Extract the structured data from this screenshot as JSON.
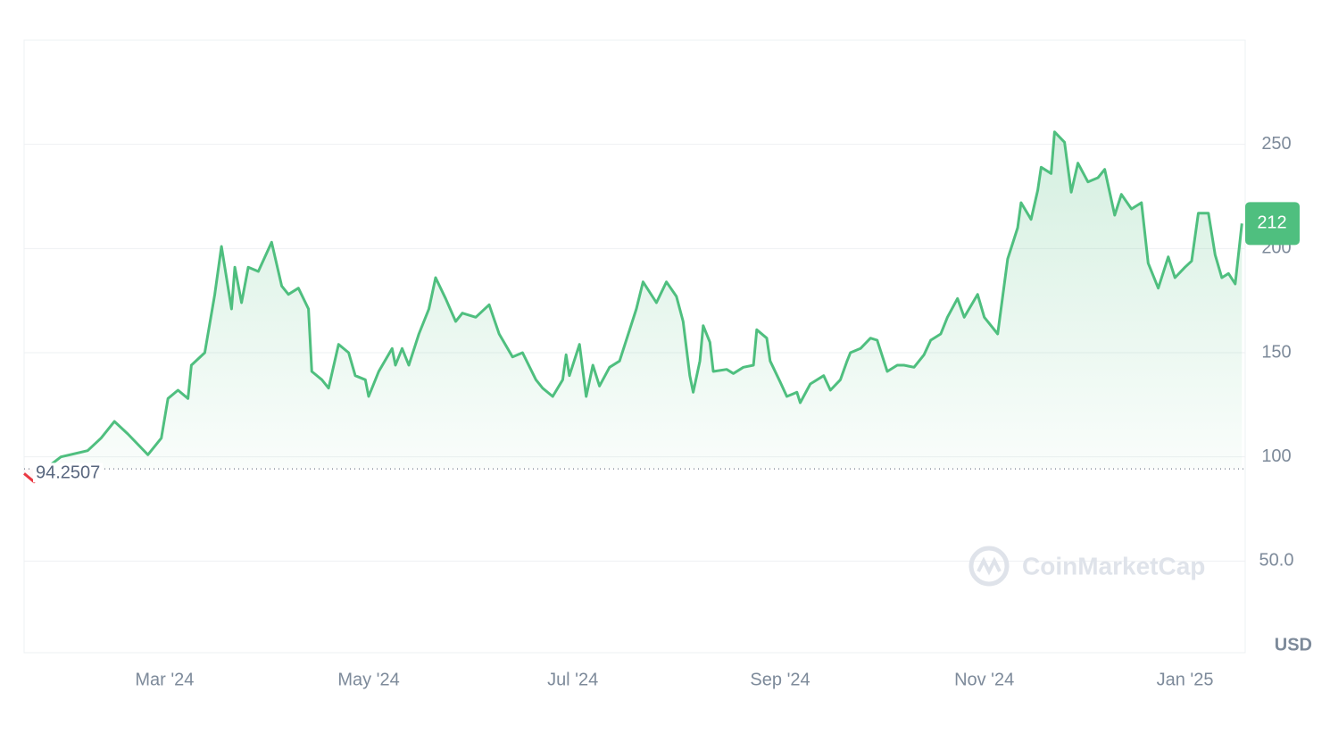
{
  "chart_data": {
    "type": "line",
    "currency": "USD",
    "watermark": "CoinMarketCap",
    "baseline": 94.2507,
    "x": [
      0,
      3,
      7,
      11,
      19,
      23,
      27,
      31,
      37,
      41,
      43,
      46,
      49,
      50,
      54,
      57,
      59,
      62,
      63,
      65,
      67,
      70,
      74,
      77,
      79,
      82,
      85,
      86,
      89,
      91,
      94,
      97,
      99,
      102,
      103,
      106,
      110,
      111,
      113,
      115,
      118,
      121,
      123,
      126,
      129,
      131,
      135,
      139,
      142,
      146,
      149,
      153,
      155,
      158,
      161,
      162,
      163,
      166,
      168,
      170,
      172,
      175,
      178,
      181,
      183,
      185,
      189,
      192,
      195,
      197,
      199,
      200,
      202,
      203,
      205,
      206,
      210,
      212,
      215,
      218,
      219,
      222,
      223,
      226,
      228,
      231,
      232,
      235,
      239,
      241,
      244,
      246,
      247,
      250,
      253,
      255,
      258,
      261,
      263,
      266,
      269,
      271,
      274,
      276,
      279,
      281,
      285,
      287,
      291,
      294,
      297,
      298,
      301,
      303,
      304,
      307,
      308,
      311,
      313,
      315,
      318,
      321,
      323,
      326,
      328,
      331,
      334,
      336,
      339,
      342,
      344,
      347,
      349,
      351,
      354,
      356,
      358,
      360,
      362,
      364
    ],
    "values": [
      92,
      88,
      95,
      100,
      103,
      109,
      117,
      111,
      101,
      109,
      128,
      132,
      128,
      144,
      150,
      178,
      201,
      171,
      191,
      174,
      191,
      189,
      203,
      182,
      178,
      181,
      171,
      141,
      137,
      133,
      154,
      150,
      139,
      137,
      129,
      141,
      152,
      144,
      152,
      144,
      159,
      171,
      186,
      176,
      165,
      169,
      167,
      173,
      159,
      148,
      150,
      137,
      133,
      129,
      137,
      149,
      139,
      154,
      129,
      144,
      134,
      143,
      146,
      161,
      171,
      184,
      174,
      184,
      177,
      165,
      139,
      131,
      146,
      163,
      155,
      141,
      142,
      140,
      143,
      144,
      161,
      157,
      146,
      136,
      129,
      131,
      126,
      135,
      139,
      132,
      137,
      146,
      150,
      152,
      157,
      156,
      141,
      144,
      144,
      143,
      149,
      156,
      159,
      167,
      176,
      167,
      178,
      167,
      159,
      195,
      210,
      222,
      214,
      228,
      239,
      236,
      256,
      251,
      227,
      241,
      232,
      234,
      238,
      216,
      226,
      219,
      222,
      193,
      181,
      196,
      186,
      191,
      194,
      217,
      217,
      197,
      186,
      188,
      183,
      212
    ],
    "up_color": "#4fbf7f",
    "down_color": "#ea3943",
    "xlim": [
      0,
      365
    ],
    "xticks": [
      {
        "value": 42,
        "label": "Mar '24"
      },
      {
        "value": 103,
        "label": "May '24"
      },
      {
        "value": 164,
        "label": "Jul '24"
      },
      {
        "value": 226,
        "label": "Sep '24"
      },
      {
        "value": 287,
        "label": "Nov '24"
      },
      {
        "value": 347,
        "label": "Jan '25"
      }
    ],
    "ylim": [
      6,
      300
    ],
    "yticks": [
      {
        "value": 50,
        "label": "50.0"
      },
      100,
      150,
      200,
      250
    ],
    "grid": true
  }
}
